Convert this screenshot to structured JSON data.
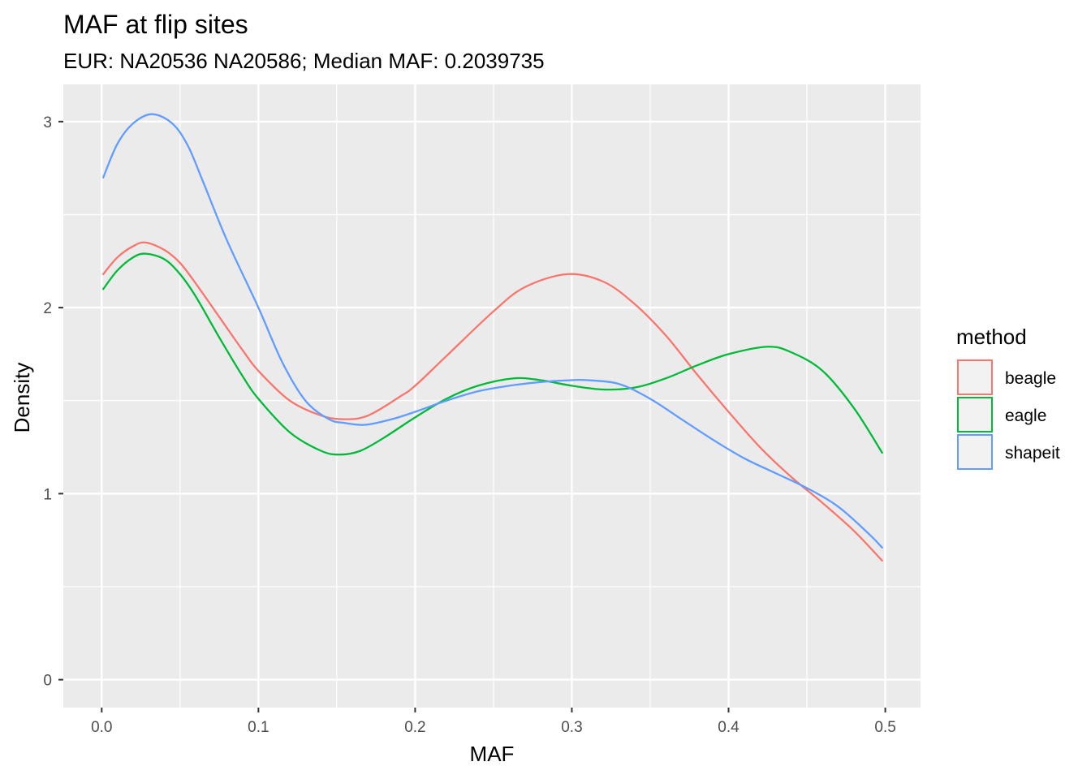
{
  "chart_data": {
    "type": "line",
    "title": "MAF at flip sites",
    "subtitle": "EUR: NA20536 NA20586; Median MAF: 0.2039735",
    "xlabel": "MAF",
    "ylabel": "Density",
    "xlim": [
      -0.0245,
      0.5225
    ],
    "ylim": [
      -0.15,
      3.2
    ],
    "x_ticks": [
      0.0,
      0.1,
      0.2,
      0.3,
      0.4,
      0.5
    ],
    "x_tick_labels": [
      "0.0",
      "0.1",
      "0.2",
      "0.3",
      "0.4",
      "0.5"
    ],
    "y_ticks": [
      0,
      1,
      2,
      3
    ],
    "y_tick_labels": [
      "0",
      "1",
      "2",
      "3"
    ],
    "grid": true,
    "panel_background": "#ebebeb",
    "legend": {
      "title": "method",
      "position": "right",
      "entries": [
        "beagle",
        "eagle",
        "shapeit"
      ]
    },
    "series": [
      {
        "name": "beagle",
        "color": "#f8766d",
        "x": [
          0.001,
          0.01,
          0.02,
          0.028,
          0.04,
          0.05,
          0.06,
          0.075,
          0.09,
          0.1,
          0.12,
          0.14,
          0.155,
          0.17,
          0.19,
          0.2,
          0.22,
          0.25,
          0.27,
          0.297,
          0.32,
          0.34,
          0.36,
          0.38,
          0.4,
          0.42,
          0.44,
          0.46,
          0.48,
          0.498
        ],
        "y": [
          2.18,
          2.27,
          2.33,
          2.35,
          2.31,
          2.24,
          2.13,
          1.95,
          1.77,
          1.66,
          1.5,
          1.42,
          1.4,
          1.42,
          1.52,
          1.58,
          1.74,
          1.98,
          2.11,
          2.18,
          2.14,
          2.02,
          1.85,
          1.64,
          1.44,
          1.25,
          1.09,
          0.95,
          0.8,
          0.64
        ]
      },
      {
        "name": "eagle",
        "color": "#00ba38",
        "x": [
          0.001,
          0.01,
          0.02,
          0.028,
          0.04,
          0.05,
          0.06,
          0.075,
          0.09,
          0.1,
          0.12,
          0.14,
          0.152,
          0.165,
          0.18,
          0.2,
          0.22,
          0.24,
          0.263,
          0.28,
          0.3,
          0.32,
          0.34,
          0.36,
          0.38,
          0.4,
          0.425,
          0.44,
          0.46,
          0.48,
          0.498
        ],
        "y": [
          2.1,
          2.2,
          2.27,
          2.29,
          2.26,
          2.18,
          2.06,
          1.84,
          1.63,
          1.51,
          1.33,
          1.23,
          1.21,
          1.23,
          1.3,
          1.41,
          1.51,
          1.58,
          1.62,
          1.61,
          1.58,
          1.56,
          1.57,
          1.62,
          1.69,
          1.75,
          1.79,
          1.76,
          1.66,
          1.46,
          1.22
        ]
      },
      {
        "name": "shapeit",
        "color": "#619cff",
        "x": [
          0.001,
          0.01,
          0.02,
          0.032,
          0.045,
          0.055,
          0.065,
          0.08,
          0.1,
          0.115,
          0.13,
          0.145,
          0.155,
          0.168,
          0.185,
          0.2,
          0.22,
          0.24,
          0.26,
          0.28,
          0.3,
          0.31,
          0.33,
          0.35,
          0.37,
          0.39,
          0.41,
          0.43,
          0.45,
          0.47,
          0.49,
          0.498
        ],
        "y": [
          2.7,
          2.88,
          2.99,
          3.04,
          2.99,
          2.87,
          2.67,
          2.36,
          2.0,
          1.71,
          1.5,
          1.4,
          1.38,
          1.37,
          1.4,
          1.44,
          1.5,
          1.55,
          1.58,
          1.6,
          1.61,
          1.61,
          1.59,
          1.51,
          1.4,
          1.29,
          1.19,
          1.11,
          1.03,
          0.93,
          0.78,
          0.71
        ]
      }
    ]
  }
}
